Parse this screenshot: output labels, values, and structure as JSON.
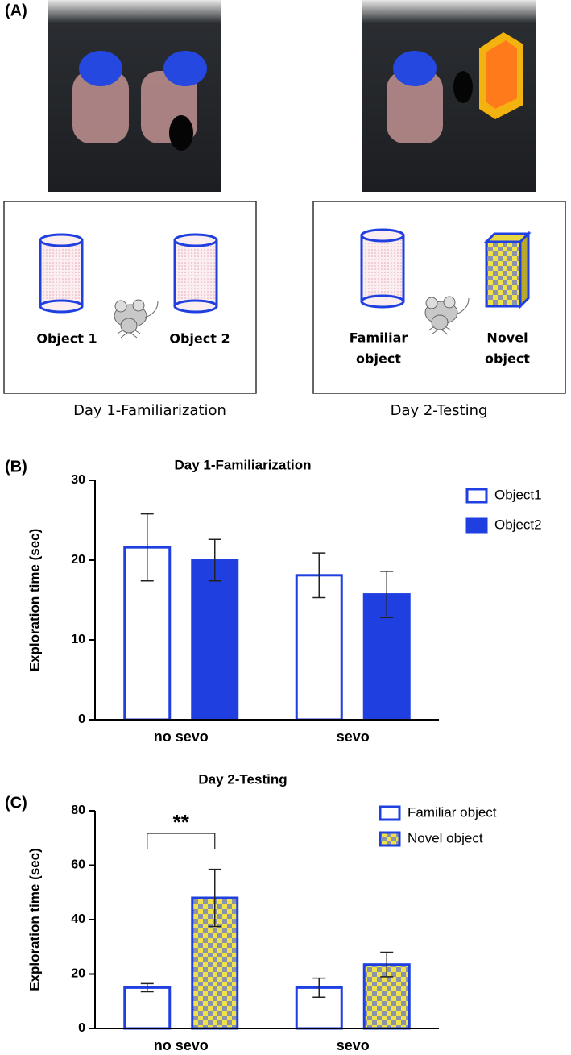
{
  "panel_a": {
    "label": "(A)",
    "left": {
      "objects": [
        "Object 1",
        "Object 2"
      ],
      "caption": "Day 1-Familiarization"
    },
    "right": {
      "familiar": [
        "Familiar",
        "object"
      ],
      "novel": [
        "Novel",
        "object"
      ],
      "caption": "Day 2-Testing"
    }
  },
  "chart_data": [
    {
      "type": "bar",
      "panel_label": "(B)",
      "title": "Day 1-Familiarization",
      "y_label": "Exploration time (sec)",
      "categories": [
        "no sevo",
        "sevo"
      ],
      "series": [
        {
          "name": "Object1",
          "color": "#1f3fe0",
          "fill": "none",
          "values": [
            21.6,
            18.1
          ],
          "errors": [
            4.2,
            2.8
          ]
        },
        {
          "name": "Object2",
          "color": "#1f3fe0",
          "fill": "solid",
          "values": [
            20.0,
            15.7
          ],
          "errors": [
            2.6,
            2.9
          ]
        }
      ],
      "ylim": [
        0,
        30
      ],
      "yticks": [
        0,
        10,
        20,
        30
      ]
    },
    {
      "type": "bar",
      "panel_label": "(C)",
      "title": "Day 2-Testing",
      "y_label": "Exploration time (sec)",
      "categories": [
        "no sevo",
        "sevo"
      ],
      "series": [
        {
          "name": "Familiar object",
          "color": "#1f3fe0",
          "fill": "none",
          "values": [
            15,
            15
          ],
          "errors": [
            1.5,
            3.5
          ]
        },
        {
          "name": "Novel object",
          "color": "#1f3fe0",
          "fill": "checker",
          "values": [
            48,
            23.5
          ],
          "errors": [
            10.5,
            4.5
          ]
        }
      ],
      "ylim": [
        0,
        80
      ],
      "yticks": [
        0,
        20,
        40,
        60,
        80
      ],
      "annotation": "**"
    }
  ]
}
